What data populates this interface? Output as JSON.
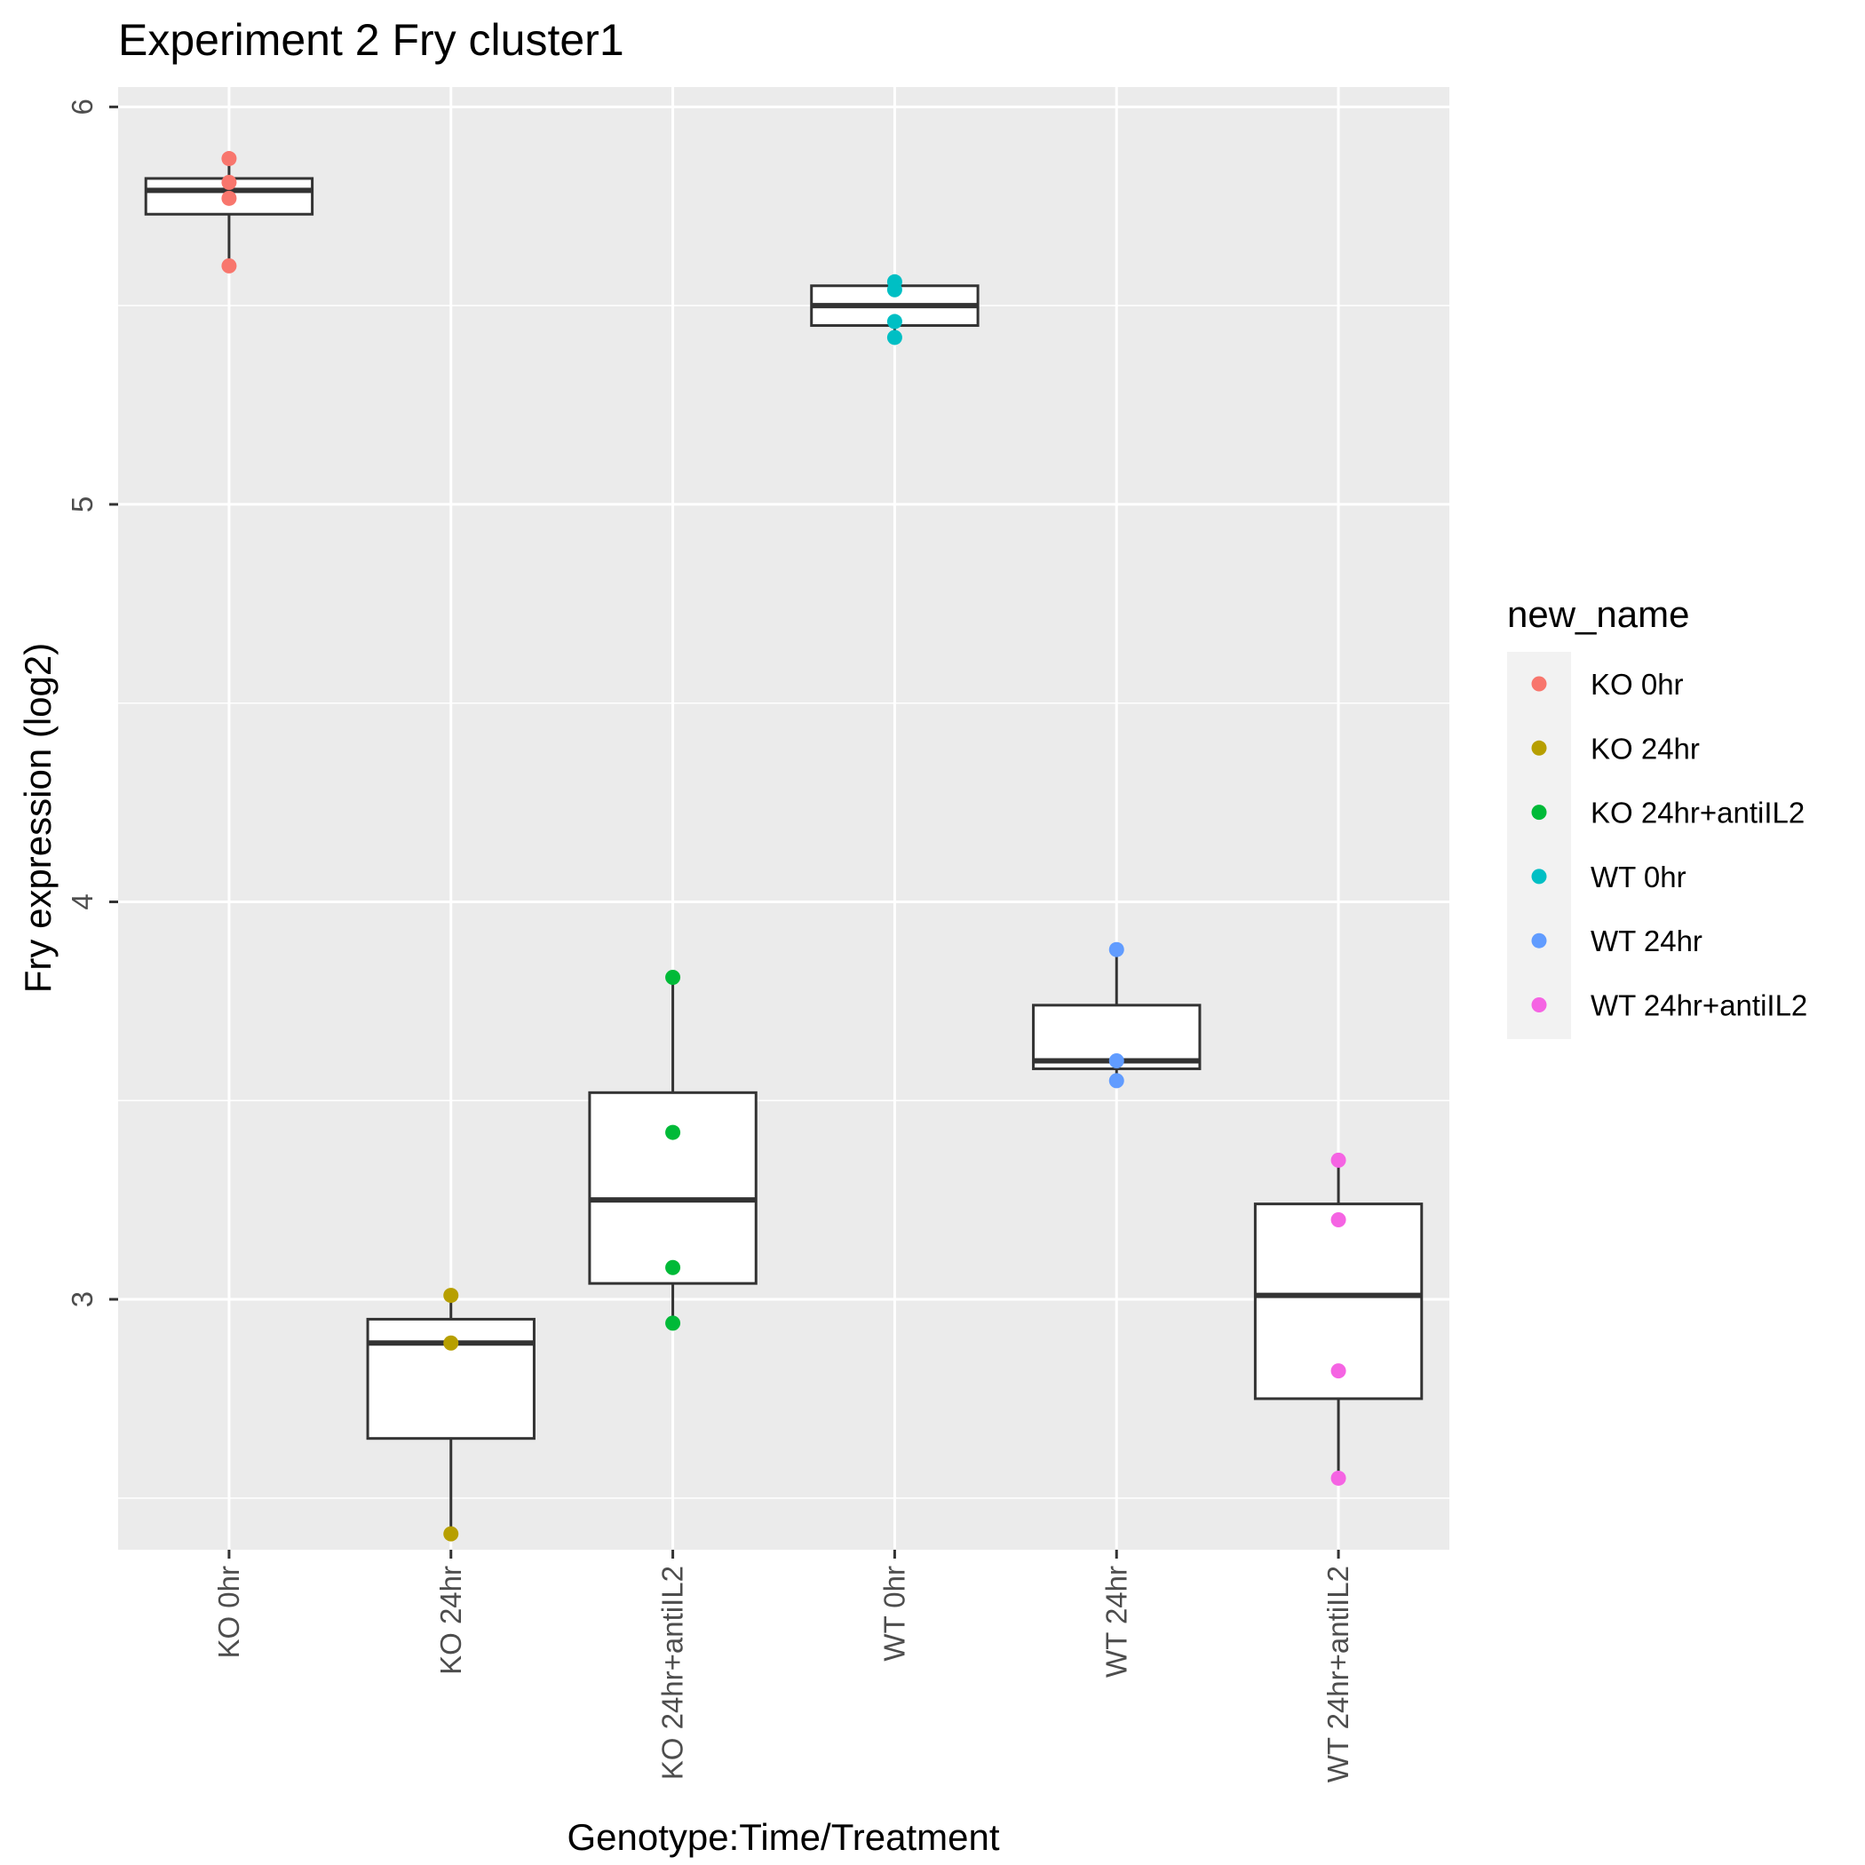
{
  "chart_data": {
    "type": "box",
    "title": "Experiment 2 Fry cluster1",
    "xlabel": "Genotype:Time/Treatment",
    "ylabel": "Fry expression (log2)",
    "ylim": [
      2.37,
      6.05
    ],
    "yticks": [
      3,
      4,
      5,
      6
    ],
    "grid": true,
    "legend": {
      "title": "new_name",
      "position": "right"
    },
    "categories": [
      "KO 0hr",
      "KO 24hr",
      "KO 24hr+antiIL2",
      "WT 0hr",
      "WT 24hr",
      "WT 24hr+antiIL2"
    ],
    "series": [
      {
        "name": "KO 0hr",
        "color": "#F8766D",
        "points": [
          5.87,
          5.81,
          5.77,
          5.6
        ],
        "box": {
          "whisker_low": 5.6,
          "q1": 5.73,
          "median": 5.79,
          "q3": 5.82,
          "whisker_high": 5.87
        }
      },
      {
        "name": "KO 24hr",
        "color": "#B79F00",
        "points": [
          3.01,
          2.89,
          2.41
        ],
        "box": {
          "whisker_low": 2.41,
          "q1": 2.65,
          "median": 2.89,
          "q3": 2.95,
          "whisker_high": 3.01
        }
      },
      {
        "name": "KO 24hr+antiIL2",
        "color": "#00BA38",
        "points": [
          3.81,
          3.42,
          3.08,
          2.94
        ],
        "box": {
          "whisker_low": 2.94,
          "q1": 3.04,
          "median": 3.25,
          "q3": 3.52,
          "whisker_high": 3.81
        }
      },
      {
        "name": "WT 0hr",
        "color": "#00BFC4",
        "points": [
          5.56,
          5.54,
          5.46,
          5.42
        ],
        "box": {
          "whisker_low": 5.42,
          "q1": 5.45,
          "median": 5.5,
          "q3": 5.55,
          "whisker_high": 5.56
        }
      },
      {
        "name": "WT 24hr",
        "color": "#619CFF",
        "points": [
          3.88,
          3.6,
          3.55
        ],
        "box": {
          "whisker_low": 3.55,
          "q1": 3.58,
          "median": 3.6,
          "q3": 3.74,
          "whisker_high": 3.88
        }
      },
      {
        "name": "WT 24hr+antiIL2",
        "color": "#F564E3",
        "points": [
          3.35,
          3.2,
          2.82,
          2.55
        ],
        "box": {
          "whisker_low": 2.55,
          "q1": 2.75,
          "median": 3.01,
          "q3": 3.24,
          "whisker_high": 3.35
        }
      }
    ]
  }
}
